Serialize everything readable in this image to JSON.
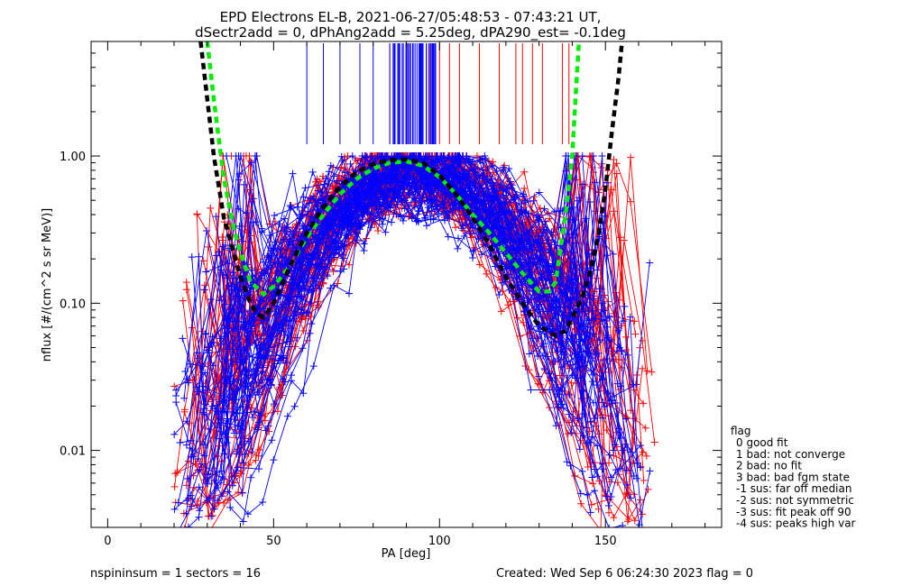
{
  "chart_data": {
    "type": "line",
    "title_line1": "EPD Electrons EL-B, 2021-06-27/05:48:53 - 07:43:21 UT,",
    "title_line2": "dSectr2add = 0, dPhAng2add = 5.25deg, dPA290_est=  -0.1deg",
    "xlabel": "PA [deg]",
    "ylabel": "nflux [#/(cm^2 s sr MeV)]",
    "xlim": [
      -5,
      185
    ],
    "ylim": [
      0.003,
      6
    ],
    "yscale": "log",
    "x_ticks": [
      0,
      50,
      100,
      150
    ],
    "x_tick_labels": [
      "0",
      "50",
      "100",
      "150"
    ],
    "y_ticks": [
      0.01,
      0.1,
      1.0
    ],
    "y_tick_labels": [
      "0.01",
      "0.10",
      "1.00"
    ],
    "grid": false,
    "legend": {
      "title": "flag",
      "placement": "right",
      "entries": [
        "0 good fit",
        "1 bad: not converge",
        "2 bad: no fit",
        "3 bad: bad fgm state",
        "-1 sus: far off median",
        "-2 sus: not symmetric",
        "-3 sus: fit peak off 90",
        "-4 sus: peaks high var"
      ]
    },
    "footer_left": "nspininsum =  1  sectors = 16",
    "footer_right": "Created: Wed Sep  6 06:24:30 2023   flag = 0",
    "colors": {
      "red_series": "#ff0000",
      "blue_series": "#0000ff",
      "green_fit": "#00ee00",
      "black_fit": "#000000"
    },
    "series": [
      {
        "color": "green",
        "style": "dashed",
        "x": [
          30,
          32,
          35,
          38,
          40,
          43,
          47,
          50,
          55,
          60,
          65,
          70,
          75,
          80,
          85,
          90,
          95,
          100,
          105,
          110,
          115,
          120,
          125,
          130,
          133,
          135,
          136,
          138,
          140,
          141,
          142
        ],
        "y": [
          6,
          2.4,
          0.7,
          0.32,
          0.22,
          0.14,
          0.115,
          0.13,
          0.18,
          0.28,
          0.4,
          0.55,
          0.7,
          0.82,
          0.9,
          0.92,
          0.86,
          0.72,
          0.55,
          0.4,
          0.3,
          0.22,
          0.16,
          0.12,
          0.12,
          0.14,
          0.2,
          0.4,
          1.0,
          2.5,
          6
        ]
      },
      {
        "color": "black",
        "style": "dashed",
        "x": [
          28,
          32,
          35,
          38,
          40,
          43,
          45,
          47,
          50,
          55,
          60,
          65,
          70,
          75,
          80,
          85,
          90,
          95,
          100,
          105,
          110,
          115,
          120,
          125,
          130,
          135,
          138,
          140,
          143,
          145,
          148,
          150,
          152,
          154,
          155
        ],
        "y": [
          6,
          1.0,
          0.38,
          0.22,
          0.15,
          0.1,
          0.085,
          0.08,
          0.1,
          0.18,
          0.3,
          0.45,
          0.62,
          0.78,
          0.88,
          0.94,
          0.95,
          0.9,
          0.74,
          0.55,
          0.38,
          0.25,
          0.15,
          0.1,
          0.07,
          0.06,
          0.065,
          0.08,
          0.11,
          0.15,
          0.3,
          0.6,
          1.5,
          3.5,
          6
        ]
      }
    ],
    "red_marker_x": [
      85,
      88,
      91,
      94,
      97,
      100,
      103,
      106,
      112,
      118,
      123,
      125,
      128,
      131,
      137,
      139
    ],
    "blue_marker_x": [
      60,
      65,
      70,
      76,
      80,
      85,
      88,
      90,
      92,
      94,
      96,
      98
    ]
  }
}
